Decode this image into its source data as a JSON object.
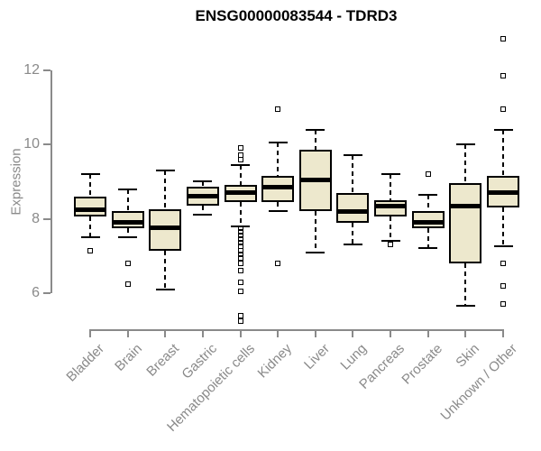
{
  "title": "ENSG00000083544 - TDRD3",
  "colors": {
    "box_fill": "#EDE8CD",
    "box_border": "#000000",
    "median": "#000000",
    "whisker": "#000000",
    "axis": "#8a8a8a",
    "title_text": "#000000",
    "background": "#FFFFFF"
  },
  "chart_data": {
    "type": "boxplot",
    "title": "ENSG00000083544 - TDRD3",
    "xlabel": "",
    "ylabel": "Expression",
    "ylim": [
      5.0,
      13.2
    ],
    "yticks": [
      6,
      8,
      10,
      12
    ],
    "grid": false,
    "legend": false,
    "categories": [
      "Bladder",
      "Brain",
      "Breast",
      "Gastric",
      "Hematopoietic cells",
      "Kidney",
      "Liver",
      "Lung",
      "Pancreas",
      "Prostate",
      "Skin",
      "Unknown / Other"
    ],
    "boxes": [
      {
        "category": "Bladder",
        "whisker_low": 7.5,
        "q1": 8.05,
        "median": 8.25,
        "q3": 8.6,
        "whisker_high": 9.2,
        "outliers": [
          7.15
        ]
      },
      {
        "category": "Brain",
        "whisker_low": 7.5,
        "q1": 7.75,
        "median": 7.9,
        "q3": 8.2,
        "whisker_high": 8.8,
        "outliers": [
          6.8,
          6.25
        ]
      },
      {
        "category": "Breast",
        "whisker_low": 6.1,
        "q1": 7.15,
        "median": 7.75,
        "q3": 8.25,
        "whisker_high": 9.3,
        "outliers": []
      },
      {
        "category": "Gastric",
        "whisker_low": 8.1,
        "q1": 8.35,
        "median": 8.6,
        "q3": 8.85,
        "whisker_high": 9.0,
        "outliers": []
      },
      {
        "category": "Hematopoietic cells",
        "whisker_low": 7.8,
        "q1": 8.45,
        "median": 8.7,
        "q3": 8.9,
        "whisker_high": 9.45,
        "outliers": [
          9.9,
          9.7,
          9.6,
          7.75,
          7.65,
          7.55,
          7.45,
          7.35,
          7.25,
          7.15,
          7.05,
          6.95,
          6.8,
          6.6,
          6.3,
          6.05,
          5.4,
          5.25
        ]
      },
      {
        "category": "Kidney",
        "whisker_low": 8.2,
        "q1": 8.45,
        "median": 8.85,
        "q3": 9.15,
        "whisker_high": 10.05,
        "outliers": [
          10.95,
          6.8
        ]
      },
      {
        "category": "Liver",
        "whisker_low": 7.1,
        "q1": 8.2,
        "median": 9.05,
        "q3": 9.85,
        "whisker_high": 10.4,
        "outliers": []
      },
      {
        "category": "Lung",
        "whisker_low": 7.3,
        "q1": 7.9,
        "median": 8.2,
        "q3": 8.7,
        "whisker_high": 9.7,
        "outliers": []
      },
      {
        "category": "Pancreas",
        "whisker_low": 7.4,
        "q1": 8.05,
        "median": 8.35,
        "q3": 8.5,
        "whisker_high": 9.2,
        "outliers": [
          7.3
        ]
      },
      {
        "category": "Prostate",
        "whisker_low": 7.2,
        "q1": 7.75,
        "median": 7.9,
        "q3": 8.2,
        "whisker_high": 8.65,
        "outliers": [
          9.2
        ]
      },
      {
        "category": "Skin",
        "whisker_low": 5.65,
        "q1": 6.8,
        "median": 8.35,
        "q3": 8.95,
        "whisker_high": 10.0,
        "outliers": []
      },
      {
        "category": "Unknown / Other",
        "whisker_low": 7.25,
        "q1": 8.3,
        "median": 8.7,
        "q3": 9.15,
        "whisker_high": 10.4,
        "outliers": [
          12.85,
          11.85,
          10.95,
          6.8,
          6.2,
          5.7
        ]
      }
    ]
  }
}
